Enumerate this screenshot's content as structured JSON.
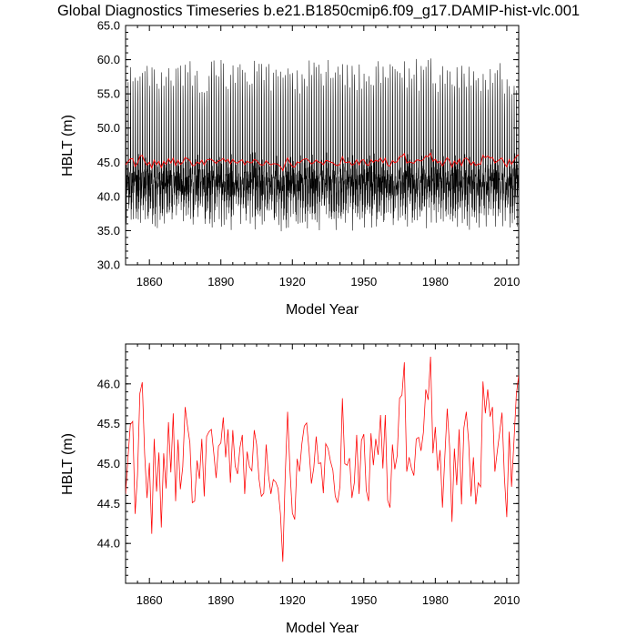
{
  "title": "Global Diagnostics Timeseries b.e21.B1850cmip6.f09_g17.DAMIP-hist-vlc.001",
  "colors": {
    "monthly": "#000000",
    "annual": "#ff0000",
    "axis": "#000000",
    "background": "#ffffff"
  },
  "chart_data": [
    {
      "type": "line",
      "xlabel": "Model Year",
      "ylabel": "HBLT (m)",
      "xlim": [
        1850,
        2015
      ],
      "ylim": [
        30.0,
        65.0
      ],
      "xticks": [
        1860,
        1890,
        1920,
        1950,
        1980,
        2010
      ],
      "xtick_labels": [
        "1860",
        "1890",
        "1920",
        "1950",
        "1980",
        "2010"
      ],
      "yticks": [
        30.0,
        35.0,
        40.0,
        45.0,
        50.0,
        55.0,
        60.0,
        65.0
      ],
      "ytick_labels": [
        "30.0",
        "35.0",
        "40.0",
        "45.0",
        "50.0",
        "55.0",
        "60.0",
        "65.0"
      ],
      "grid": false,
      "legend": "none",
      "series": [
        {
          "kind": "monthly",
          "color": "#000000",
          "x_start": 1850,
          "x_end": 2015,
          "peak_range": [
            55.0,
            60.0
          ],
          "trough_range": [
            35.0,
            39.0
          ],
          "secondary_peak_range": [
            42.0,
            46.5
          ]
        },
        {
          "kind": "annual",
          "color": "#ff0000",
          "x_start": 1850,
          "x_step": 1,
          "ref": "annual_mean"
        }
      ]
    },
    {
      "type": "line",
      "xlabel": "Model Year",
      "ylabel": "HBLT (m)",
      "xlim": [
        1850,
        2015
      ],
      "ylim": [
        43.5,
        46.5
      ],
      "xticks": [
        1860,
        1890,
        1920,
        1950,
        1980,
        2010
      ],
      "xtick_labels": [
        "1860",
        "1890",
        "1920",
        "1950",
        "1980",
        "2010"
      ],
      "yticks": [
        44.0,
        44.5,
        45.0,
        45.5,
        46.0
      ],
      "ytick_labels": [
        "44.0",
        "44.5",
        "45.0",
        "45.5",
        "46.0"
      ],
      "grid": false,
      "legend": "none",
      "series": [
        {
          "kind": "annual",
          "color": "#ff0000",
          "x_start": 1850,
          "x_step": 1,
          "ref": "annual_mean"
        }
      ]
    }
  ],
  "annual_mean": [
    44.62,
    45.07,
    45.49,
    45.53,
    44.37,
    44.85,
    45.88,
    46.02,
    45.12,
    44.57,
    45.01,
    44.12,
    45.31,
    44.65,
    45.14,
    44.2,
    45.13,
    44.69,
    45.52,
    44.89,
    45.63,
    44.53,
    45.3,
    44.68,
    44.96,
    45.71,
    45.47,
    45.26,
    44.51,
    44.53,
    45.04,
    44.81,
    45.31,
    44.59,
    45.34,
    45.4,
    45.43,
    45.14,
    44.82,
    45.22,
    45.26,
    45.58,
    45.08,
    45.43,
    44.76,
    45.42,
    44.97,
    44.87,
    45.2,
    45.36,
    44.62,
    45.15,
    44.96,
    44.91,
    45.42,
    45.24,
    44.81,
    44.59,
    44.63,
    45.24,
    44.85,
    44.62,
    44.8,
    44.77,
    44.69,
    44.37,
    43.77,
    44.85,
    45.65,
    44.92,
    44.38,
    44.3,
    45.06,
    44.9,
    45.25,
    45.47,
    45.51,
    45.17,
    44.75,
    44.95,
    45.34,
    45.0,
    45.01,
    44.63,
    45.25,
    45.19,
    45.03,
    44.92,
    44.59,
    44.51,
    44.72,
    45.82,
    45.0,
    44.98,
    45.07,
    44.57,
    44.76,
    45.36,
    44.62,
    45.29,
    45.37,
    44.67,
    44.53,
    45.38,
    44.98,
    45.31,
    45.11,
    45.61,
    44.94,
    45.61,
    44.54,
    44.45,
    45.24,
    44.93,
    45.1,
    45.82,
    45.86,
    46.27,
    44.9,
    45.08,
    44.94,
    44.85,
    45.31,
    45.33,
    45.16,
    45.39,
    45.93,
    45.8,
    46.34,
    45.13,
    45.46,
    44.91,
    45.17,
    44.45,
    45.09,
    45.69,
    45.21,
    44.27,
    45.19,
    44.73,
    45.43,
    44.49,
    45.45,
    45.65,
    45.27,
    44.59,
    45.08,
    44.49,
    44.76,
    44.71,
    46.03,
    45.63,
    45.93,
    45.59,
    45.71,
    44.9,
    45.15,
    45.39,
    45.64,
    44.83,
    44.33,
    45.4,
    44.71,
    45.27,
    45.86,
    46.11,
    45.0,
    44.71,
    45.19
  ]
}
